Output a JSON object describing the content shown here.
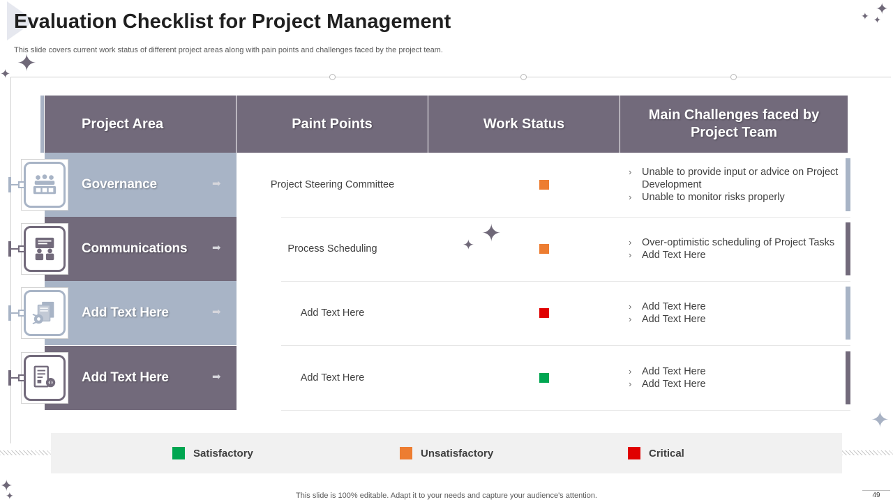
{
  "title": "Evaluation Checklist for Project Management",
  "subtitle": "This slide covers current work status of different project areas along with pain points and challenges faced by the project team.",
  "table": {
    "headers": [
      "Project Area",
      "Paint Points",
      "Work Status",
      "Main Challenges faced by Project Team"
    ],
    "rows": [
      {
        "area": "Governance",
        "icon": "meeting-people-icon",
        "theme": "#a8b4c6",
        "pain_point": "Project Steering Committee",
        "status": "Unsatisfactory",
        "status_color": "#ed7d31",
        "challenges": [
          "Unable to provide input or advice on Project Development",
          "Unable to monitor risks properly"
        ]
      },
      {
        "area": "Communications",
        "icon": "presentation-people-icon",
        "theme": "#726a7b",
        "pain_point": "Process Scheduling",
        "status": "Unsatisfactory",
        "status_color": "#ed7d31",
        "challenges": [
          "Over-optimistic scheduling of Project Tasks",
          "Add Text Here"
        ]
      },
      {
        "area": "Add Text Here",
        "icon": "documents-gear-icon",
        "theme": "#a8b4c6",
        "pain_point": "Add Text Here",
        "status": "Critical",
        "status_color": "#e00000",
        "challenges": [
          "Add Text Here",
          "Add Text Here"
        ]
      },
      {
        "area": "Add Text Here",
        "icon": "document-process-icon",
        "theme": "#726a7b",
        "pain_point": "Add Text Here",
        "status": "Satisfactory",
        "status_color": "#00a651",
        "challenges": [
          "Add Text Here",
          "Add Text Here"
        ]
      }
    ]
  },
  "legend": [
    {
      "label": "Satisfactory",
      "color": "#00a651"
    },
    {
      "label": "Unsatisfactory",
      "color": "#ed7d31"
    },
    {
      "label": "Critical",
      "color": "#e00000"
    }
  ],
  "colors": {
    "header_bg": "#726a7b",
    "light_accent": "#a8b4c6",
    "dark_accent": "#726a7b"
  },
  "footer": "This slide is 100% editable. Adapt it to your needs and capture your audience's attention.",
  "page_number": "49"
}
